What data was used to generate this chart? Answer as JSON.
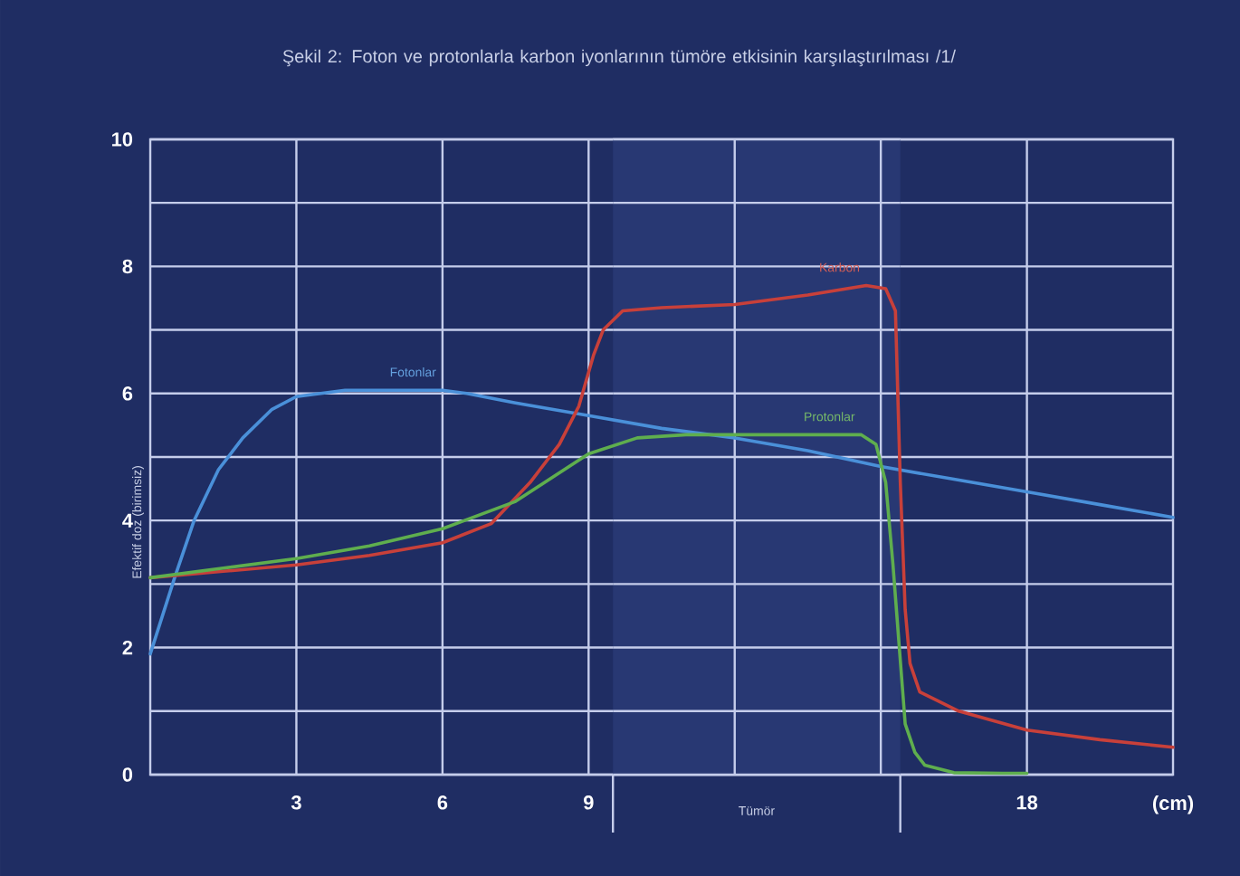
{
  "chart_data": {
    "type": "line",
    "title": "Şekil 2:  Foton ve protonlarla karbon iyonlarının tümöre etkisinin karşılaştırılması  /1/",
    "xlabel": "(cm)",
    "ylabel": "Efektif doz (birimsiz)",
    "xlim": [
      0,
      21
    ],
    "ylim": [
      0,
      10
    ],
    "xticks": [
      3,
      6,
      9,
      {
        "value": 12,
        "label": null
      },
      {
        "value": 15,
        "label": null
      },
      18
    ],
    "yticks": [
      0,
      {
        "value": 1,
        "label": null
      },
      2,
      {
        "value": 3,
        "label": null
      },
      4,
      {
        "value": 5,
        "label": null
      },
      6,
      {
        "value": 7,
        "label": null
      },
      8,
      {
        "value": 9,
        "label": null
      },
      10
    ],
    "grid": true,
    "bands": [
      {
        "axis": "x",
        "from": 9.5,
        "to": 15.4,
        "label": "Tümör",
        "color": "#283873"
      }
    ],
    "series": [
      {
        "name": "Fotonlar",
        "color": "#4a90d9",
        "x": [
          0,
          0.5,
          0.9,
          1.4,
          1.9,
          2.5,
          3,
          4,
          5,
          6,
          6.5,
          7.5,
          9,
          10.5,
          12,
          13.5,
          15,
          16.5,
          18,
          19.5,
          21
        ],
        "values": [
          1.9,
          3.1,
          4.0,
          4.8,
          5.3,
          5.75,
          5.95,
          6.05,
          6.05,
          6.05,
          6.0,
          5.85,
          5.65,
          5.45,
          5.3,
          5.1,
          4.85,
          4.65,
          4.45,
          4.25,
          4.05
        ]
      },
      {
        "name": "Karbon",
        "color": "#c8403a",
        "x": [
          0,
          1.5,
          3,
          4.5,
          6,
          7,
          7.8,
          8.4,
          8.8,
          9.1,
          9.3,
          9.7,
          10.5,
          12,
          13.5,
          14.7,
          15.1,
          15.3,
          15.4,
          15.5,
          15.6,
          15.8,
          16.6,
          18,
          19.5,
          21
        ],
        "values": [
          3.1,
          3.2,
          3.3,
          3.45,
          3.65,
          3.95,
          4.6,
          5.2,
          5.8,
          6.6,
          7.0,
          7.3,
          7.35,
          7.4,
          7.55,
          7.7,
          7.65,
          7.3,
          4.6,
          2.6,
          1.75,
          1.3,
          1.0,
          0.7,
          0.55,
          0.43
        ]
      },
      {
        "name": "Protonlar",
        "color": "#5fae4e",
        "x": [
          0,
          1.5,
          3,
          4.5,
          6,
          7.5,
          9,
          10,
          11,
          12,
          13.5,
          14.6,
          14.9,
          15.1,
          15.25,
          15.4,
          15.5,
          15.7,
          15.9,
          16.5,
          17.5,
          18
        ],
        "values": [
          3.1,
          3.25,
          3.4,
          3.6,
          3.87,
          4.3,
          5.05,
          5.3,
          5.35,
          5.35,
          5.35,
          5.35,
          5.2,
          4.6,
          3.3,
          1.8,
          0.8,
          0.35,
          0.15,
          0.03,
          0.02,
          0.02
        ]
      }
    ]
  }
}
